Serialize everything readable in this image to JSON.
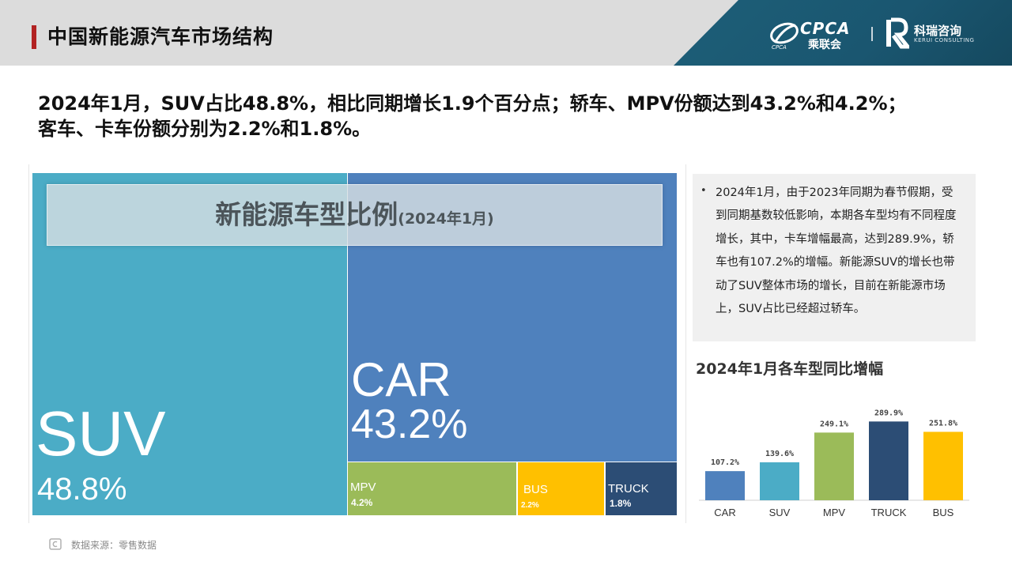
{
  "header": {
    "title": "中国新能源汽车市场结构",
    "logo_cpca": "CPCA",
    "logo_cpca_sub": "乘联会",
    "logo_kerui": "科瑞咨询",
    "logo_kerui_sub": "KERUI CONSULTING"
  },
  "summary": {
    "line1": "2024年1月，SUV占比48.8%，相比同期增长1.9个百分点；轿车、MPV份额达到43.2%和4.2%；",
    "line2": "客车、卡车份额分别为2.2%和1.8%。"
  },
  "treemap": {
    "title_main": "新能源车型比例",
    "title_sub": "(2024年1月)"
  },
  "notes": {
    "bullet": "•",
    "text": "2024年1月，由于2023年同期为春节假期，受到同期基数较低影响，本期各车型均有不同程度增长，其中，卡车增幅最高，达到289.9%，轿车也有107.2%的增幅。新能源SUV的增长也带动了SUV整体市场的增长，目前在新能源市场上，SUV占比已经超过轿车。"
  },
  "growth": {
    "title": "2024年1月各车型同比增幅"
  },
  "footer": {
    "source": "数据来源：零售数据"
  },
  "colors": {
    "suv": "#4bacc6",
    "car": "#4f81bd",
    "mpv": "#9bbb59",
    "bus": "#ffc000",
    "truck": "#2c4d75"
  },
  "chart_data": [
    {
      "type": "treemap",
      "title": "新能源车型比例(2024年1月)",
      "items": [
        {
          "name": "SUV",
          "value": 48.8,
          "label": "48.8%",
          "color": "#4bacc6"
        },
        {
          "name": "CAR",
          "value": 43.2,
          "label": "43.2%",
          "color": "#4f81bd"
        },
        {
          "name": "MPV",
          "value": 4.2,
          "label": "4.2%",
          "color": "#9bbb59"
        },
        {
          "name": "BUS",
          "value": 2.2,
          "label": "2.2%",
          "color": "#ffc000"
        },
        {
          "name": "TRUCK",
          "value": 1.8,
          "label": "1.8%",
          "color": "#2c4d75"
        }
      ]
    },
    {
      "type": "bar",
      "title": "2024年1月各车型同比增幅",
      "categories": [
        "CAR",
        "SUV",
        "MPV",
        "TRUCK",
        "BUS"
      ],
      "values": [
        107.2,
        139.6,
        249.1,
        289.9,
        251.8
      ],
      "labels": [
        "107.2%",
        "139.6%",
        "249.1%",
        "289.9%",
        "251.8%"
      ],
      "colors": [
        "#4f81bd",
        "#4bacc6",
        "#9bbb59",
        "#2c4d75",
        "#ffc000"
      ],
      "ylim": [
        0,
        320
      ],
      "grid": false
    }
  ]
}
